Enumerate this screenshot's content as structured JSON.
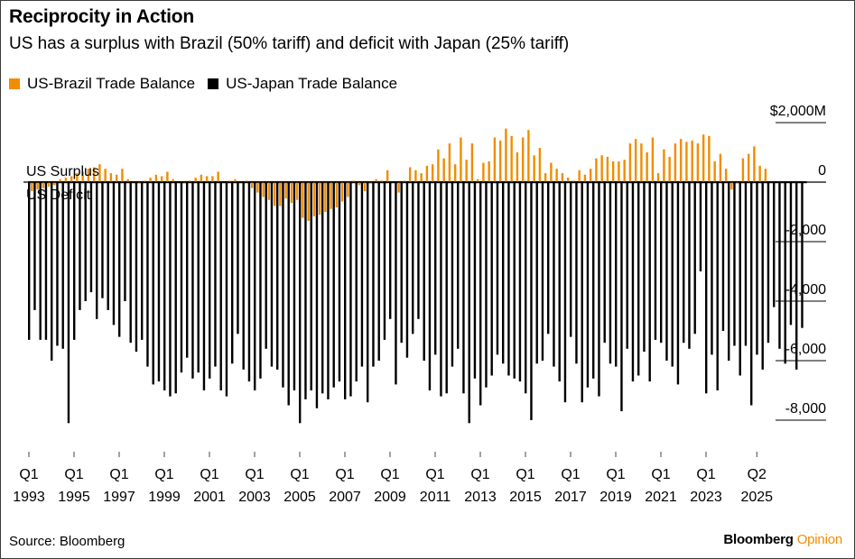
{
  "header": {
    "title": "Reciprocity in Action",
    "subtitle": "US has a surplus with Brazil (50% tariff) and deficit with Japan (25% tariff)"
  },
  "footer": {
    "source": "Source: Bloomberg",
    "brand_main": "Bloomberg",
    "brand_accent": "Opinion"
  },
  "colors": {
    "brazil": "#f28c00",
    "japan": "#000000",
    "grid": "#000000"
  },
  "chart_data": {
    "type": "bar",
    "title": "Reciprocity in Action",
    "subtitle": "US has a surplus with Brazil (50% tariff) and deficit with Japan (25% tariff)",
    "xlabel": "",
    "ylabel": "",
    "ylim": [
      -8000,
      2000
    ],
    "y_ticks": [
      2000,
      0,
      -2000,
      -4000,
      -6000,
      -8000
    ],
    "y_tick_labels": [
      "$2,000M",
      "0",
      "-2,000",
      "-4,000",
      "-6,000",
      "-8,000"
    ],
    "x_start": "Q1 1993",
    "x_end": "Q2 2025",
    "x_ticks": [
      {
        "index": 0,
        "q": "Q1",
        "year": "1993"
      },
      {
        "index": 8,
        "q": "Q1",
        "year": "1995"
      },
      {
        "index": 16,
        "q": "Q1",
        "year": "1997"
      },
      {
        "index": 24,
        "q": "Q1",
        "year": "1999"
      },
      {
        "index": 32,
        "q": "Q1",
        "year": "2001"
      },
      {
        "index": 40,
        "q": "Q1",
        "year": "2003"
      },
      {
        "index": 48,
        "q": "Q1",
        "year": "2005"
      },
      {
        "index": 56,
        "q": "Q1",
        "year": "2007"
      },
      {
        "index": 64,
        "q": "Q1",
        "year": "2009"
      },
      {
        "index": 72,
        "q": "Q1",
        "year": "2011"
      },
      {
        "index": 80,
        "q": "Q1",
        "year": "2013"
      },
      {
        "index": 88,
        "q": "Q1",
        "year": "2015"
      },
      {
        "index": 96,
        "q": "Q1",
        "year": "2017"
      },
      {
        "index": 104,
        "q": "Q1",
        "year": "2019"
      },
      {
        "index": 112,
        "q": "Q1",
        "year": "2021"
      },
      {
        "index": 120,
        "q": "Q1",
        "year": "2023"
      },
      {
        "index": 129,
        "q": "Q2",
        "year": "2025"
      }
    ],
    "annotations": [
      "US Surplus",
      "US Deficit"
    ],
    "legend": "top-left",
    "grid": true,
    "series": [
      {
        "name": "US-Brazil Trade Balance",
        "color": "#f28c00",
        "values": [
          -300,
          -250,
          -200,
          -150,
          -100,
          100,
          150,
          200,
          300,
          350,
          450,
          500,
          600,
          450,
          300,
          250,
          450,
          100,
          0,
          -50,
          50,
          150,
          250,
          200,
          350,
          100,
          0,
          -50,
          50,
          150,
          250,
          200,
          200,
          350,
          0,
          50,
          100,
          0,
          50,
          -200,
          -350,
          -500,
          -600,
          -800,
          -800,
          -550,
          -700,
          -600,
          -1200,
          -1300,
          -1150,
          -1100,
          -1000,
          -900,
          -850,
          -650,
          -500,
          50,
          -100,
          -300,
          -50,
          100,
          50,
          400,
          0,
          -350,
          50,
          500,
          400,
          300,
          550,
          600,
          1100,
          800,
          1300,
          600,
          1500,
          750,
          1300,
          100,
          650,
          700,
          1500,
          1400,
          1800,
          1550,
          1000,
          1500,
          1750,
          900,
          1150,
          300,
          650,
          450,
          300,
          150,
          50,
          400,
          250,
          450,
          800,
          900,
          850,
          700,
          700,
          750,
          1300,
          1450,
          1300,
          1000,
          1500,
          300,
          1100,
          850,
          1300,
          1450,
          1350,
          1400,
          1300,
          1600,
          1550,
          700,
          950,
          450,
          -250,
          -50,
          800,
          950,
          1200,
          550,
          450
        ]
      },
      {
        "name": "US-Japan Trade Balance",
        "color": "#000000",
        "values": [
          -5300,
          -4300,
          -5300,
          -5300,
          -6000,
          -5500,
          -5600,
          -8100,
          -5300,
          -4300,
          -4000,
          -3700,
          -4600,
          -3900,
          -4300,
          -4800,
          -5200,
          -4000,
          -5400,
          -5700,
          -5300,
          -6200,
          -6800,
          -6700,
          -7000,
          -7200,
          -7100,
          -6400,
          -5900,
          -6600,
          -6400,
          -7000,
          -6600,
          -6200,
          -7000,
          -7200,
          -6100,
          -5100,
          -6300,
          -6700,
          -7000,
          -6600,
          -5600,
          -6200,
          -6300,
          -6900,
          -7500,
          -7000,
          -8100,
          -7300,
          -7000,
          -7600,
          -7100,
          -7300,
          -6900,
          -6700,
          -7300,
          -7200,
          -6700,
          -6200,
          -7400,
          -6200,
          -6000,
          -5300,
          -4600,
          -6800,
          -5400,
          -5900,
          -5100,
          -4600,
          -6000,
          -7000,
          -5800,
          -7200,
          -7100,
          -6200,
          -5600,
          -7100,
          -8100,
          -6600,
          -7500,
          -6900,
          -6500,
          -5800,
          -6100,
          -6500,
          -6600,
          -6700,
          -7100,
          -8000,
          -6100,
          -6000,
          -5100,
          -6200,
          -6700,
          -7400,
          -5200,
          -6100,
          -7400,
          -6900,
          -6600,
          -7200,
          -5400,
          -6100,
          -6200,
          -7700,
          -5600,
          -6700,
          -6500,
          -5700,
          -6700,
          -5300,
          -5400,
          -6000,
          -6200,
          -6800,
          -5400,
          -5600,
          -5100,
          -3000,
          -7100,
          -5800,
          -7000,
          -5000,
          -6000,
          -5500,
          -6500,
          -5500,
          -7500,
          -5800,
          -6300,
          -5400,
          -4200,
          -5600,
          -6100,
          -4800,
          -6300,
          -4900
        ]
      }
    ]
  }
}
